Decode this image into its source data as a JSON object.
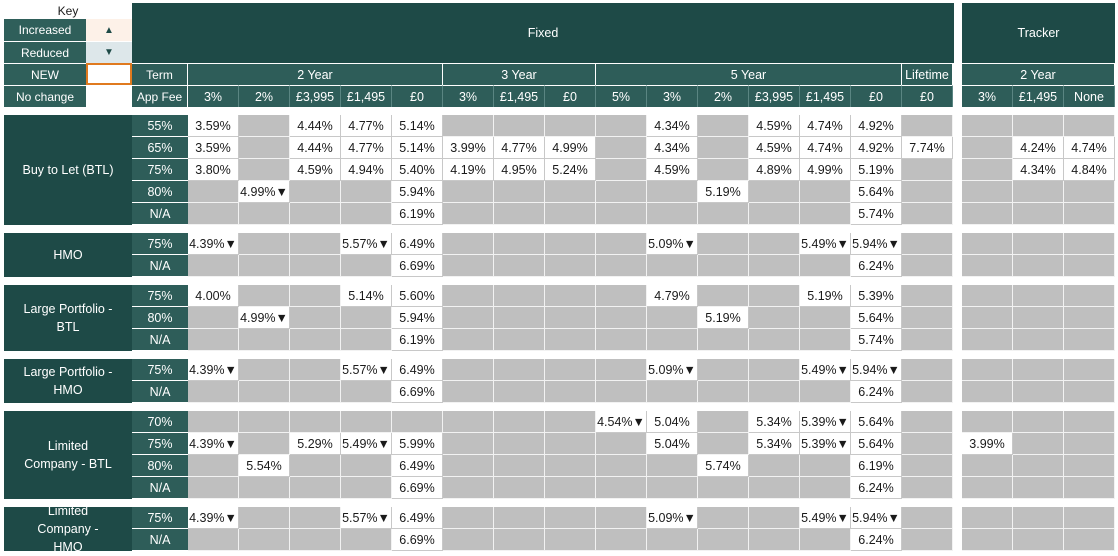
{
  "key": {
    "title": "Key",
    "items": [
      {
        "label": "Increased",
        "symbol": "▲",
        "bg": "#fdf1e8"
      },
      {
        "label": "Reduced",
        "symbol": "▼",
        "bg": "#dde7ea"
      },
      {
        "label": "NEW",
        "symbol": "",
        "bg": "#ffffff",
        "border": "#e07a1f"
      },
      {
        "label": "No change",
        "symbol": "",
        "bg": "#ffffff"
      }
    ]
  },
  "header": {
    "fixed_title": "Fixed",
    "tracker_title": "Tracker",
    "term_label": "Term",
    "app_fee_label": "App Fee"
  },
  "term_groups": [
    "2 Year",
    "3 Year",
    "5 Year",
    "Lifetime",
    "2 Year"
  ],
  "fees": [
    "3%",
    "2%",
    "£3,995",
    "£1,495",
    "£0",
    "3%",
    "£1,495",
    "£0",
    "5%",
    "3%",
    "2%",
    "£3,995",
    "£1,495",
    "£0",
    "£0",
    "3%",
    "£1,495",
    "None"
  ],
  "colors": {
    "dark": "#1e4a47",
    "mid": "#2e5d59",
    "gray": "#bfbfbf",
    "reduced": "#dde7ea",
    "new_border": "#e07a1f"
  },
  "products": [
    {
      "name": "Buy to Let (BTL)",
      "rows": [
        {
          "ltv": "55%",
          "cells": [
            "3.59%",
            "",
            "4.44%",
            "4.77%",
            "5.14%",
            "",
            "",
            "",
            "",
            "4.34%",
            "",
            "4.59%",
            "4.74%",
            "4.92%",
            "",
            "",
            "",
            ""
          ]
        },
        {
          "ltv": "65%",
          "cells": [
            "3.59%",
            "",
            "4.44%",
            "4.77%",
            "5.14%",
            "3.99%",
            "4.77%",
            "4.99%",
            "",
            "4.34%",
            "",
            "4.59%",
            "4.74%",
            "4.92%",
            "7.74%",
            "",
            "4.24%",
            "4.74%"
          ]
        },
        {
          "ltv": "75%",
          "cells": [
            "3.80%",
            "",
            "4.59%",
            "4.94%",
            "5.40%",
            "4.19%",
            "4.95%",
            "5.24%",
            "",
            "4.59%",
            "",
            "4.89%",
            "4.99%",
            "5.19%",
            "",
            "",
            "4.34%",
            "4.84%"
          ]
        },
        {
          "ltv": "80%",
          "cells": [
            "",
            "4.99%▼",
            "",
            "",
            "5.94%",
            "",
            "",
            "",
            "",
            "",
            "5.19%",
            "",
            "",
            "5.64%",
            "",
            "",
            "",
            ""
          ]
        },
        {
          "ltv": "N/A",
          "cells": [
            "",
            "",
            "",
            "",
            "6.19%",
            "",
            "",
            "",
            "",
            "",
            "",
            "",
            "",
            "5.74%",
            "",
            "",
            "",
            ""
          ]
        }
      ]
    },
    {
      "name": "HMO",
      "rows": [
        {
          "ltv": "75%",
          "cells": [
            "4.39%▼",
            "",
            "",
            "5.57%▼",
            "6.49%",
            "",
            "",
            "",
            "",
            "5.09%▼",
            "",
            "",
            "5.49%▼",
            "5.94%▼",
            "",
            "",
            "",
            ""
          ]
        },
        {
          "ltv": "N/A",
          "cells": [
            "",
            "",
            "",
            "",
            "6.69%",
            "",
            "",
            "",
            "",
            "",
            "",
            "",
            "",
            "6.24%",
            "",
            "",
            "",
            ""
          ]
        }
      ]
    },
    {
      "name": "Large Portfolio - BTL",
      "rows": [
        {
          "ltv": "75%",
          "cells": [
            "4.00%",
            "",
            "",
            "5.14%",
            "5.60%",
            "",
            "",
            "",
            "",
            "4.79%",
            "",
            "",
            "5.19%",
            "5.39%",
            "",
            "",
            "",
            ""
          ]
        },
        {
          "ltv": "80%",
          "cells": [
            "",
            "4.99%▼",
            "",
            "",
            "5.94%",
            "",
            "",
            "",
            "",
            "",
            "5.19%",
            "",
            "",
            "5.64%",
            "",
            "",
            "",
            ""
          ]
        },
        {
          "ltv": "N/A",
          "cells": [
            "",
            "",
            "",
            "",
            "6.19%",
            "",
            "",
            "",
            "",
            "",
            "",
            "",
            "",
            "5.74%",
            "",
            "",
            "",
            ""
          ]
        }
      ]
    },
    {
      "name": "Large Portfolio - HMO",
      "rows": [
        {
          "ltv": "75%",
          "cells": [
            "4.39%▼",
            "",
            "",
            "5.57%▼",
            "6.49%",
            "",
            "",
            "",
            "",
            "5.09%▼",
            "",
            "",
            "5.49%▼",
            "5.94%▼",
            "",
            "",
            "",
            ""
          ]
        },
        {
          "ltv": "N/A",
          "cells": [
            "",
            "",
            "",
            "",
            "6.69%",
            "",
            "",
            "",
            "",
            "",
            "",
            "",
            "",
            "6.24%",
            "",
            "",
            "",
            ""
          ]
        }
      ]
    },
    {
      "name": "Limited Company - BTL",
      "rows": [
        {
          "ltv": "70%",
          "cells": [
            "",
            "",
            "",
            "",
            "",
            "",
            "",
            "",
            "4.54%▼",
            "5.04%",
            "",
            "5.34%",
            "5.39%▼",
            "5.64%",
            "",
            "",
            "",
            ""
          ]
        },
        {
          "ltv": "75%",
          "cells": [
            "4.39%▼",
            "",
            "5.29%",
            "5.49%▼",
            "5.99%",
            "",
            "",
            "",
            "",
            "5.04%",
            "",
            "5.34%",
            "5.39%▼",
            "5.64%",
            "",
            "3.99%",
            "",
            ""
          ]
        },
        {
          "ltv": "80%",
          "cells": [
            "",
            "5.54%",
            "",
            "",
            "6.49%",
            "",
            "",
            "",
            "",
            "",
            "5.74%",
            "",
            "",
            "6.19%",
            "",
            "",
            "",
            ""
          ]
        },
        {
          "ltv": "N/A",
          "cells": [
            "",
            "",
            "",
            "",
            "6.69%",
            "",
            "",
            "",
            "",
            "",
            "",
            "",
            "",
            "6.24%",
            "",
            "",
            "",
            ""
          ]
        }
      ]
    },
    {
      "name": "Limited Company - HMO",
      "rows": [
        {
          "ltv": "75%",
          "cells": [
            "4.39%▼",
            "",
            "",
            "5.57%▼",
            "6.49%",
            "",
            "",
            "",
            "",
            "5.09%▼",
            "",
            "",
            "5.49%▼",
            "5.94%▼",
            "",
            "",
            "",
            ""
          ]
        },
        {
          "ltv": "N/A",
          "cells": [
            "",
            "",
            "",
            "",
            "6.69%",
            "",
            "",
            "",
            "",
            "",
            "",
            "",
            "",
            "6.24%",
            "",
            "",
            "",
            ""
          ]
        }
      ]
    }
  ]
}
